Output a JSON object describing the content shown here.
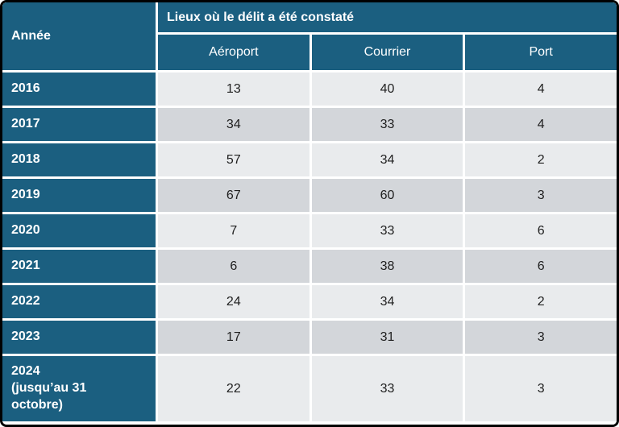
{
  "colors": {
    "header_bg": "#1B5F80",
    "header_text": "#FFFFFF",
    "row_light": "#E9EBED",
    "row_dark": "#D3D6DA",
    "value_text": "#1F1F1F",
    "separator": "#FFFFFF",
    "border": "#000000"
  },
  "chart_data": {
    "type": "table",
    "title": "Lieux où le délit a été constaté",
    "row_header_label": "Année",
    "columns": [
      "Aéroport",
      "Courrier",
      "Port"
    ],
    "rows": [
      {
        "year": "2016",
        "note": "",
        "values": [
          13,
          40,
          4
        ]
      },
      {
        "year": "2017",
        "note": "",
        "values": [
          34,
          33,
          4
        ]
      },
      {
        "year": "2018",
        "note": "",
        "values": [
          57,
          34,
          2
        ]
      },
      {
        "year": "2019",
        "note": "",
        "values": [
          67,
          60,
          3
        ]
      },
      {
        "year": "2020",
        "note": "",
        "values": [
          7,
          33,
          6
        ]
      },
      {
        "year": "2021",
        "note": "",
        "values": [
          6,
          38,
          6
        ]
      },
      {
        "year": "2022",
        "note": "",
        "values": [
          24,
          34,
          2
        ]
      },
      {
        "year": "2023",
        "note": "",
        "values": [
          17,
          31,
          3
        ]
      },
      {
        "year": "2024",
        "note": "(jusqu’au 31 octobre)",
        "values": [
          22,
          33,
          3
        ]
      }
    ]
  }
}
